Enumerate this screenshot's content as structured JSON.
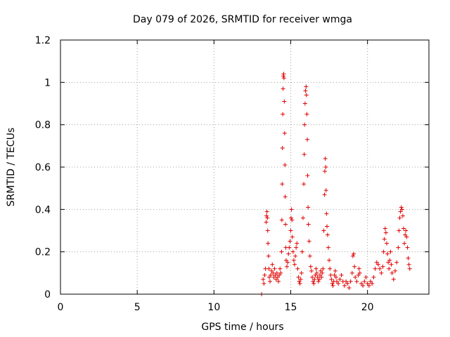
{
  "chart_data": {
    "type": "scatter",
    "title": "Day 079 of 2026, SRMTID for receiver wmga",
    "xlabel": "GPS time / hours",
    "ylabel": "SRMTID / TECUs",
    "xlim": [
      0,
      24
    ],
    "ylim": [
      0,
      1.2
    ],
    "x_ticks": [
      0,
      5,
      10,
      15,
      20
    ],
    "y_ticks": [
      0,
      0.2,
      0.4,
      0.6,
      0.8,
      1,
      1.2
    ],
    "x_tick_labels": [
      "0",
      "5",
      "10",
      "15",
      "20"
    ],
    "y_tick_labels": [
      "0",
      "0.2",
      "0.4",
      "0.6",
      "0.8",
      "1",
      "1.2"
    ],
    "grid": true,
    "marker": "+",
    "color": "#e00000",
    "series": [
      {
        "name": "wmga",
        "points": [
          [
            13.1,
            0.0
          ],
          [
            13.2,
            0.07
          ],
          [
            13.25,
            0.05
          ],
          [
            13.3,
            0.09
          ],
          [
            13.35,
            0.12
          ],
          [
            13.4,
            0.34
          ],
          [
            13.42,
            0.37
          ],
          [
            13.45,
            0.39
          ],
          [
            13.48,
            0.36
          ],
          [
            13.5,
            0.3
          ],
          [
            13.52,
            0.24
          ],
          [
            13.55,
            0.18
          ],
          [
            13.58,
            0.12
          ],
          [
            13.6,
            0.08
          ],
          [
            13.65,
            0.06
          ],
          [
            13.7,
            0.09
          ],
          [
            13.75,
            0.11
          ],
          [
            13.8,
            0.14
          ],
          [
            13.85,
            0.1
          ],
          [
            13.9,
            0.08
          ],
          [
            13.95,
            0.12
          ],
          [
            14.0,
            0.09
          ],
          [
            14.05,
            0.07
          ],
          [
            14.1,
            0.1
          ],
          [
            14.15,
            0.08
          ],
          [
            14.2,
            0.06
          ],
          [
            14.25,
            0.09
          ],
          [
            14.3,
            0.12
          ],
          [
            14.35,
            0.1
          ],
          [
            14.4,
            0.2
          ],
          [
            14.42,
            0.35
          ],
          [
            14.44,
            0.52
          ],
          [
            14.46,
            0.69
          ],
          [
            14.48,
            0.85
          ],
          [
            14.5,
            0.97
          ],
          [
            14.52,
            1.03
          ],
          [
            14.54,
            1.04
          ],
          [
            14.56,
            1.02
          ],
          [
            14.58,
            0.91
          ],
          [
            14.6,
            0.76
          ],
          [
            14.62,
            0.61
          ],
          [
            14.64,
            0.46
          ],
          [
            14.66,
            0.33
          ],
          [
            14.68,
            0.22
          ],
          [
            14.7,
            0.16
          ],
          [
            14.75,
            0.13
          ],
          [
            14.8,
            0.15
          ],
          [
            14.85,
            0.19
          ],
          [
            14.9,
            0.22
          ],
          [
            14.95,
            0.25
          ],
          [
            15.0,
            0.3
          ],
          [
            15.02,
            0.36
          ],
          [
            15.05,
            0.4
          ],
          [
            15.08,
            0.35
          ],
          [
            15.1,
            0.27
          ],
          [
            15.15,
            0.2
          ],
          [
            15.2,
            0.16
          ],
          [
            15.25,
            0.14
          ],
          [
            15.3,
            0.18
          ],
          [
            15.35,
            0.22
          ],
          [
            15.4,
            0.24
          ],
          [
            15.45,
            0.12
          ],
          [
            15.5,
            0.08
          ],
          [
            15.55,
            0.06
          ],
          [
            15.6,
            0.05
          ],
          [
            15.65,
            0.07
          ],
          [
            15.7,
            0.1
          ],
          [
            15.75,
            0.2
          ],
          [
            15.8,
            0.36
          ],
          [
            15.85,
            0.52
          ],
          [
            15.88,
            0.66
          ],
          [
            15.9,
            0.8
          ],
          [
            15.93,
            0.9
          ],
          [
            15.96,
            0.96
          ],
          [
            16.0,
            0.98
          ],
          [
            16.02,
            0.94
          ],
          [
            16.05,
            0.85
          ],
          [
            16.08,
            0.73
          ],
          [
            16.1,
            0.56
          ],
          [
            16.13,
            0.41
          ],
          [
            16.15,
            0.33
          ],
          [
            16.2,
            0.25
          ],
          [
            16.25,
            0.18
          ],
          [
            16.3,
            0.13
          ],
          [
            16.35,
            0.11
          ],
          [
            16.4,
            0.08
          ],
          [
            16.45,
            0.06
          ],
          [
            16.5,
            0.05
          ],
          [
            16.55,
            0.07
          ],
          [
            16.6,
            0.09
          ],
          [
            16.65,
            0.12
          ],
          [
            16.7,
            0.1
          ],
          [
            16.75,
            0.08
          ],
          [
            16.8,
            0.06
          ],
          [
            16.85,
            0.07
          ],
          [
            16.9,
            0.09
          ],
          [
            16.95,
            0.11
          ],
          [
            17.0,
            0.08
          ],
          [
            17.05,
            0.1
          ],
          [
            17.1,
            0.12
          ],
          [
            17.15,
            0.3
          ],
          [
            17.2,
            0.47
          ],
          [
            17.22,
            0.58
          ],
          [
            17.25,
            0.64
          ],
          [
            17.28,
            0.6
          ],
          [
            17.3,
            0.49
          ],
          [
            17.33,
            0.38
          ],
          [
            17.36,
            0.32
          ],
          [
            17.4,
            0.28
          ],
          [
            17.45,
            0.22
          ],
          [
            17.5,
            0.16
          ],
          [
            17.55,
            0.12
          ],
          [
            17.6,
            0.09
          ],
          [
            17.65,
            0.07
          ],
          [
            17.7,
            0.05
          ],
          [
            17.75,
            0.04
          ],
          [
            17.8,
            0.06
          ],
          [
            17.85,
            0.09
          ],
          [
            17.9,
            0.11
          ],
          [
            17.95,
            0.08
          ],
          [
            18.0,
            0.06
          ],
          [
            18.1,
            0.05
          ],
          [
            18.2,
            0.07
          ],
          [
            18.3,
            0.09
          ],
          [
            18.4,
            0.06
          ],
          [
            18.5,
            0.04
          ],
          [
            18.6,
            0.06
          ],
          [
            18.7,
            0.05
          ],
          [
            18.8,
            0.03
          ],
          [
            18.9,
            0.06
          ],
          [
            19.0,
            0.1
          ],
          [
            19.05,
            0.18
          ],
          [
            19.1,
            0.19
          ],
          [
            19.15,
            0.13
          ],
          [
            19.2,
            0.08
          ],
          [
            19.3,
            0.06
          ],
          [
            19.4,
            0.09
          ],
          [
            19.45,
            0.12
          ],
          [
            19.5,
            0.1
          ],
          [
            19.6,
            0.05
          ],
          [
            19.7,
            0.04
          ],
          [
            19.8,
            0.06
          ],
          [
            19.9,
            0.08
          ],
          [
            20.0,
            0.05
          ],
          [
            20.1,
            0.04
          ],
          [
            20.2,
            0.06
          ],
          [
            20.3,
            0.05
          ],
          [
            20.4,
            0.08
          ],
          [
            20.5,
            0.12
          ],
          [
            20.6,
            0.15
          ],
          [
            20.7,
            0.14
          ],
          [
            20.8,
            0.12
          ],
          [
            20.9,
            0.1
          ],
          [
            21.0,
            0.13
          ],
          [
            21.05,
            0.2
          ],
          [
            21.1,
            0.26
          ],
          [
            21.15,
            0.31
          ],
          [
            21.2,
            0.29
          ],
          [
            21.25,
            0.24
          ],
          [
            21.3,
            0.19
          ],
          [
            21.35,
            0.15
          ],
          [
            21.4,
            0.12
          ],
          [
            21.45,
            0.16
          ],
          [
            21.5,
            0.2
          ],
          [
            21.55,
            0.14
          ],
          [
            21.6,
            0.1
          ],
          [
            21.7,
            0.07
          ],
          [
            21.8,
            0.11
          ],
          [
            21.9,
            0.15
          ],
          [
            22.0,
            0.22
          ],
          [
            22.05,
            0.3
          ],
          [
            22.1,
            0.36
          ],
          [
            22.15,
            0.39
          ],
          [
            22.2,
            0.41
          ],
          [
            22.25,
            0.4
          ],
          [
            22.3,
            0.37
          ],
          [
            22.35,
            0.31
          ],
          [
            22.4,
            0.24
          ],
          [
            22.45,
            0.28
          ],
          [
            22.5,
            0.3
          ],
          [
            22.55,
            0.27
          ],
          [
            22.6,
            0.22
          ],
          [
            22.65,
            0.17
          ],
          [
            22.7,
            0.14
          ],
          [
            22.75,
            0.12
          ]
        ]
      }
    ]
  }
}
